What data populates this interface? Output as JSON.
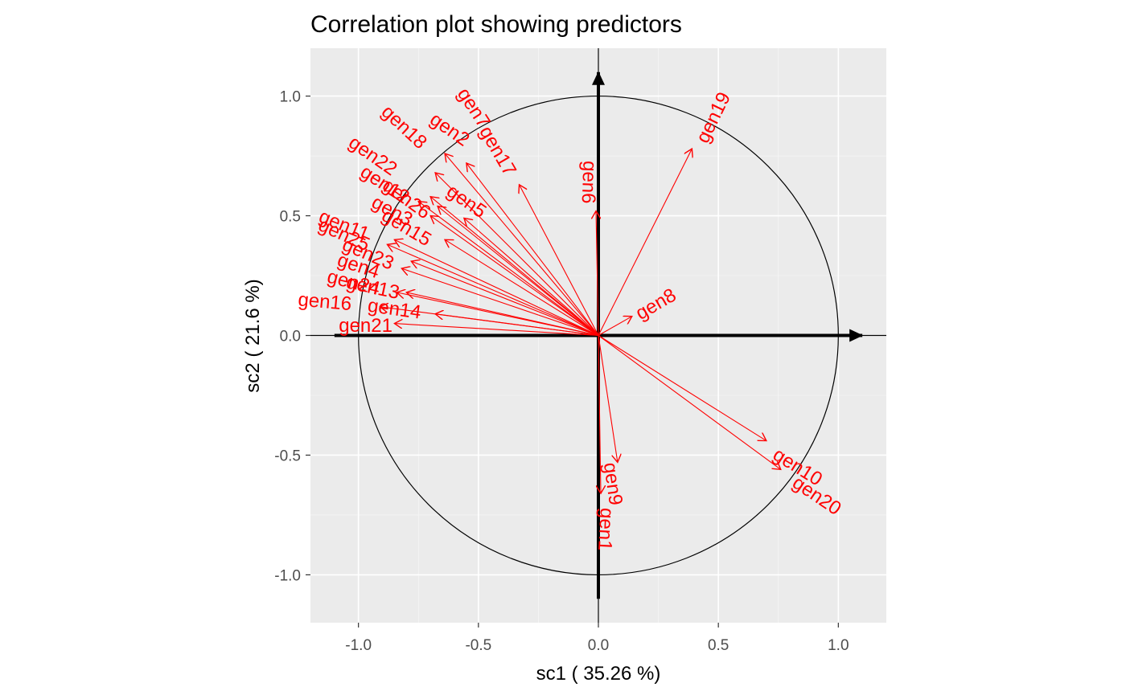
{
  "chart_data": {
    "type": "scatter",
    "title": "Correlation plot showing predictors",
    "xlabel": "sc1 ( 35.26 %)",
    "ylabel": "sc2 ( 21.6 %)",
    "xlim": [
      -1.2,
      1.2
    ],
    "ylim": [
      -1.2,
      1.2
    ],
    "x_ticks": [
      "-1.0",
      "-0.5",
      "0.0",
      "0.5",
      "1.0"
    ],
    "y_ticks": [
      "1.0",
      "0.5",
      "0.0",
      "-0.5",
      "-1.0"
    ],
    "grid": true,
    "background_color": "#ebebeb",
    "arrow_color": "#ff0000",
    "unit_circle": true,
    "variables": [
      {
        "name": "gen1",
        "x": 0.01,
        "y": -0.66
      },
      {
        "name": "gen2",
        "x": -0.64,
        "y": 0.76
      },
      {
        "name": "gen3",
        "x": -0.7,
        "y": 0.5
      },
      {
        "name": "gen4",
        "x": -0.82,
        "y": 0.28
      },
      {
        "name": "gen5",
        "x": -0.56,
        "y": 0.49
      },
      {
        "name": "gen6",
        "x": -0.01,
        "y": 0.52
      },
      {
        "name": "gen7",
        "x": -0.55,
        "y": 0.72
      },
      {
        "name": "gen8",
        "x": 0.14,
        "y": 0.08
      },
      {
        "name": "gen9",
        "x": 0.08,
        "y": -0.53
      },
      {
        "name": "gen10",
        "x": 0.7,
        "y": -0.44
      },
      {
        "name": "gen11",
        "x": -0.88,
        "y": 0.38
      },
      {
        "name": "gen12",
        "x": -0.7,
        "y": 0.58
      },
      {
        "name": "gen13",
        "x": -0.8,
        "y": 0.18
      },
      {
        "name": "gen14",
        "x": -0.68,
        "y": 0.09
      },
      {
        "name": "gen15",
        "x": -0.64,
        "y": 0.4
      },
      {
        "name": "gen16",
        "x": -0.91,
        "y": 0.12
      },
      {
        "name": "gen17",
        "x": -0.33,
        "y": 0.63
      },
      {
        "name": "gen18",
        "x": -0.68,
        "y": 0.68
      },
      {
        "name": "gen19",
        "x": 0.39,
        "y": 0.78
      },
      {
        "name": "gen20",
        "x": 0.76,
        "y": -0.56
      },
      {
        "name": "gen21",
        "x": -0.85,
        "y": 0.05
      },
      {
        "name": "gen22",
        "x": -0.75,
        "y": 0.56
      },
      {
        "name": "gen23",
        "x": -0.78,
        "y": 0.31
      },
      {
        "name": "gen24",
        "x": -0.84,
        "y": 0.18
      },
      {
        "name": "gen25",
        "x": -0.85,
        "y": 0.4
      },
      {
        "name": "gen26",
        "x": -0.67,
        "y": 0.54
      }
    ],
    "labels": [
      {
        "text": "gen1",
        "x": 0.03,
        "y": -0.81,
        "angle": 93
      },
      {
        "text": "gen2",
        "x": -0.62,
        "y": 0.86,
        "angle": 35
      },
      {
        "text": "gen3",
        "x": -0.86,
        "y": 0.52,
        "angle": 28
      },
      {
        "text": "gen4",
        "x": -1.0,
        "y": 0.29,
        "angle": 18
      },
      {
        "text": "gen5",
        "x": -0.55,
        "y": 0.56,
        "angle": 35
      },
      {
        "text": "gen6",
        "x": -0.04,
        "y": 0.64,
        "angle": 92
      },
      {
        "text": "gen7",
        "x": -0.52,
        "y": 0.95,
        "angle": 57
      },
      {
        "text": "gen8",
        "x": 0.24,
        "y": 0.13,
        "angle": -30
      },
      {
        "text": "gen9",
        "x": 0.06,
        "y": -0.62,
        "angle": 82
      },
      {
        "text": "gen10",
        "x": 0.83,
        "y": -0.55,
        "angle": 32
      },
      {
        "text": "gen11",
        "x": -1.06,
        "y": 0.46,
        "angle": 22
      },
      {
        "text": "gen12",
        "x": -0.89,
        "y": 0.63,
        "angle": 33
      },
      {
        "text": "gen13",
        "x": -0.94,
        "y": 0.2,
        "angle": 12
      },
      {
        "text": "gen14",
        "x": -0.85,
        "y": 0.11,
        "angle": 8
      },
      {
        "text": "gen15",
        "x": -0.8,
        "y": 0.45,
        "angle": 31
      },
      {
        "text": "gen16",
        "x": -1.14,
        "y": 0.14,
        "angle": 5
      },
      {
        "text": "gen17",
        "x": -0.42,
        "y": 0.77,
        "angle": 60
      },
      {
        "text": "gen18",
        "x": -0.81,
        "y": 0.87,
        "angle": 43
      },
      {
        "text": "gen19",
        "x": 0.48,
        "y": 0.91,
        "angle": -64
      },
      {
        "text": "gen20",
        "x": 0.91,
        "y": -0.67,
        "angle": 34
      },
      {
        "text": "gen21",
        "x": -0.97,
        "y": 0.04,
        "angle": 0
      },
      {
        "text": "gen22",
        "x": -0.94,
        "y": 0.75,
        "angle": 35
      },
      {
        "text": "gen23",
        "x": -0.96,
        "y": 0.34,
        "angle": 23
      },
      {
        "text": "gen24",
        "x": -1.02,
        "y": 0.22,
        "angle": 14
      },
      {
        "text": "gen25",
        "x": -1.06,
        "y": 0.42,
        "angle": 24
      },
      {
        "text": "gen26",
        "x": -0.8,
        "y": 0.57,
        "angle": 36
      }
    ]
  }
}
